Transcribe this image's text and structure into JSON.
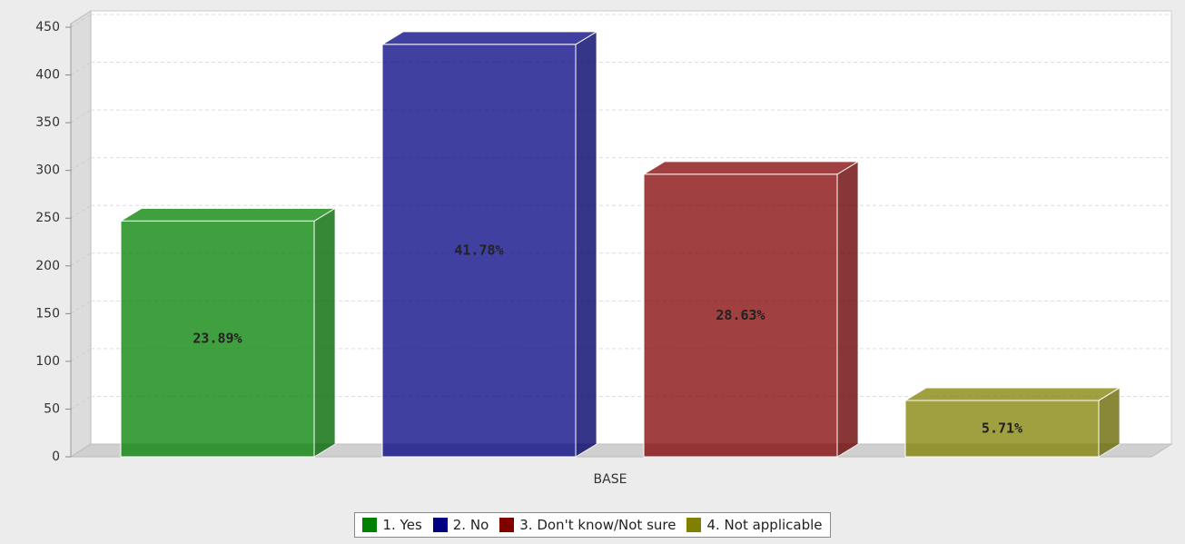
{
  "chart_data": {
    "type": "bar3d",
    "categories": [
      "BASE"
    ],
    "series": [
      {
        "name": "1. Yes",
        "color": "#008000",
        "values": [
          247
        ],
        "label": "23.89%"
      },
      {
        "name": "2. No",
        "color": "#000080",
        "values": [
          432
        ],
        "label": "41.78%"
      },
      {
        "name": "3. Don't know/Not sure",
        "color": "#800000",
        "values": [
          296
        ],
        "label": "28.63%"
      },
      {
        "name": "4. Not applicable",
        "color": "#808000",
        "values": [
          59
        ],
        "label": "5.71%"
      }
    ],
    "ylim": [
      0,
      450
    ],
    "yticks": [
      0,
      50,
      100,
      150,
      200,
      250,
      300,
      350,
      400,
      450
    ],
    "grid": true,
    "legend": "bottom"
  }
}
